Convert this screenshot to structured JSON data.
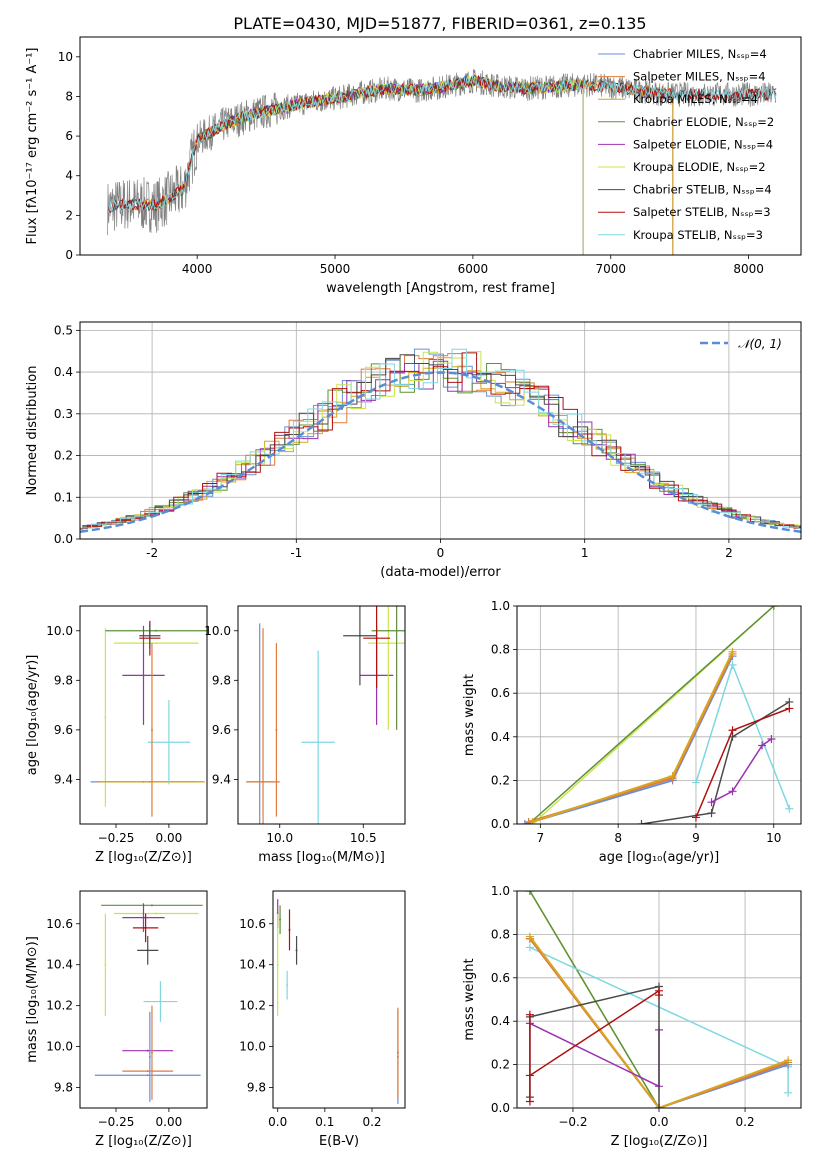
{
  "figure": {
    "title": "PLATE=0430, MJD=51877, FIBERID=0361, z=0.135"
  },
  "colors": {
    "chabrier_miles": "#6a8fd8",
    "salpeter_miles": "#e07b39",
    "kroupa_miles": "#d9a520",
    "chabrier_elodie": "#5e8f3a",
    "salpeter_elodie": "#9b30b0",
    "kroupa_elodie": "#c8e64b",
    "chabrier_stelib": "#4a4a4a",
    "salpeter_stelib": "#b01010",
    "kroupa_stelib": "#7fd8e0",
    "data": "#808080",
    "normal": "#5b8cd6",
    "grid": "#b0b0b0"
  },
  "chart_data": [
    {
      "id": "spectrum",
      "type": "line",
      "xlabel": "wavelength [Angstrom, rest frame]",
      "ylabel": "Flux [fλ10⁻¹⁷ erg cm⁻² s⁻¹ A⁻¹]",
      "xlim": [
        3150,
        8380
      ],
      "ylim": [
        0,
        11
      ],
      "xticks": [
        4000,
        5000,
        6000,
        7000,
        8000
      ],
      "yticks": [
        0,
        2,
        4,
        6,
        8,
        10
      ],
      "grid": false,
      "legend_position": "right",
      "legend": [
        {
          "label": "Chabrier MILES, Nₛₛₚ=4",
          "color_key": "chabrier_miles"
        },
        {
          "label": "Salpeter MILES, Nₛₛₚ=4",
          "color_key": "salpeter_miles"
        },
        {
          "label": "Kroupa MILES, Nₛₛₚ=4",
          "color_key": "kroupa_miles"
        },
        {
          "label": "Chabrier ELODIE, Nₛₛₚ=2",
          "color_key": "chabrier_elodie"
        },
        {
          "label": "Salpeter ELODIE, Nₛₛₚ=4",
          "color_key": "salpeter_elodie"
        },
        {
          "label": "Kroupa ELODIE, Nₛₛₚ=2",
          "color_key": "kroupa_elodie"
        },
        {
          "label": "Chabrier STELIB, Nₛₛₚ=4",
          "color_key": "chabrier_stelib"
        },
        {
          "label": "Salpeter STELIB, Nₛₛₚ=3",
          "color_key": "salpeter_stelib"
        },
        {
          "label": "Kroupa STELIB, Nₛₛₚ=3",
          "color_key": "kroupa_stelib"
        }
      ],
      "continuum": {
        "x": [
          3350,
          3500,
          3700,
          3900,
          4000,
          4200,
          4400,
          4600,
          4800,
          5000,
          5200,
          5400,
          5600,
          5800,
          6000,
          6200,
          6400,
          6600,
          6800,
          7000,
          7200,
          7400
        ],
        "y": [
          2.4,
          2.6,
          2.5,
          3.3,
          5.8,
          6.6,
          7.1,
          7.4,
          7.7,
          7.9,
          8.2,
          8.4,
          8.3,
          8.5,
          8.8,
          8.5,
          8.4,
          8.5,
          8.6,
          8.5,
          8.3,
          8.1
        ]
      }
    },
    {
      "id": "residuals",
      "type": "line",
      "xlabel": "(data-model)/error",
      "ylabel": "Normed distribution",
      "xlim": [
        -2.5,
        2.5
      ],
      "ylim": [
        0,
        0.52
      ],
      "xticks": [
        -2,
        -1,
        0,
        1,
        2
      ],
      "yticks": [
        0.0,
        0.1,
        0.2,
        0.3,
        0.4,
        0.5
      ],
      "grid": true,
      "legend_position": "top-right",
      "legend": [
        {
          "label": "𝒩(0, 1)",
          "color_key": "normal"
        }
      ],
      "bin_width": 0.1
    },
    {
      "id": "age-z",
      "type": "scatter",
      "xlabel": "Z [log₁₀(Z/Z⊙)]",
      "ylabel": "age  [log₁₀(age/yr)]",
      "xlim": [
        -0.42,
        0.18
      ],
      "ylim": [
        9.22,
        10.1
      ],
      "xticks": [
        -0.25,
        0.0
      ],
      "xticklabels": [
        "−0.25",
        "0.00"
      ],
      "yticks": [
        9.4,
        9.6,
        9.8,
        10.0
      ],
      "errorbars": [
        {
          "color_key": "kroupa_elodie",
          "x": -0.3,
          "xerr": 0,
          "y": 9.65,
          "yerr": 0.36
        },
        {
          "color_key": "chabrier_miles",
          "x": -0.12,
          "xerr": 0.25,
          "y": 9.39,
          "yerr": 0
        },
        {
          "color_key": "salpeter_miles",
          "x": -0.09,
          "xerr": 0.25,
          "y": 9.39,
          "yerr": 0
        },
        {
          "color_key": "kroupa_miles",
          "x": -0.08,
          "xerr": 0.25,
          "y": 9.39,
          "yerr": 0
        },
        {
          "color_key": "kroupa_stelib",
          "x": 0.0,
          "xerr": 0.1,
          "y": 9.55,
          "yerr": 0.17
        },
        {
          "color_key": "kroupa_elodie",
          "x": -0.06,
          "xerr": 0.2,
          "y": 9.95,
          "yerr": 0
        },
        {
          "color_key": "chabrier_elodie",
          "x": -0.06,
          "xerr": 0.24,
          "y": 10.0,
          "yerr": 0
        },
        {
          "color_key": "salpeter_elodie",
          "x": -0.12,
          "xerr": 0.1,
          "y": 9.82,
          "yerr": 0.2
        },
        {
          "color_key": "salpeter_stelib",
          "x": -0.09,
          "xerr": 0.05,
          "y": 9.97,
          "yerr": 0.07
        },
        {
          "color_key": "chabrier_stelib",
          "x": -0.09,
          "xerr": 0.05,
          "y": 9.98,
          "yerr": 0.05
        },
        {
          "color_key": "salpeter_miles",
          "x": -0.08,
          "xerr": 0,
          "y": 9.6,
          "yerr": 0.35
        }
      ]
    },
    {
      "id": "age-mass",
      "type": "scatter",
      "xlabel": "mass [log₁₀(M/M⊙)]",
      "xlim": [
        9.75,
        10.75
      ],
      "ylim": [
        9.22,
        10.1
      ],
      "xticks": [
        10.0,
        10.5
      ],
      "xticklabels": [
        "10.0",
        "10.5"
      ],
      "yticks": [
        9.4,
        9.6,
        9.8,
        10.0
      ],
      "errorbars": [
        {
          "color_key": "chabrier_miles",
          "x": 9.88,
          "xerr": 0.08,
          "y": 9.39,
          "yerr": 0.64
        },
        {
          "color_key": "salpeter_miles",
          "x": 9.9,
          "xerr": 0.1,
          "y": 9.39,
          "yerr": 0.62
        },
        {
          "color_key": "kroupa_stelib",
          "x": 10.23,
          "xerr": 0.1,
          "y": 9.55,
          "yerr": 0.37
        },
        {
          "color_key": "salpeter_elodie",
          "x": 10.58,
          "xerr": 0.1,
          "y": 9.82,
          "yerr": 0.2
        },
        {
          "color_key": "kroupa_elodie",
          "x": 10.65,
          "xerr": 0.12,
          "y": 9.95,
          "yerr": 0.35
        },
        {
          "color_key": "chabrier_elodie",
          "x": 10.7,
          "xerr": 0.15,
          "y": 10.0,
          "yerr": 0.4
        },
        {
          "color_key": "salpeter_stelib",
          "x": 10.58,
          "xerr": 0.08,
          "y": 9.97,
          "yerr": 0.2
        },
        {
          "color_key": "chabrier_stelib",
          "x": 10.48,
          "xerr": 0.1,
          "y": 9.98,
          "yerr": 0.2
        },
        {
          "color_key": "salpeter_miles",
          "x": 9.98,
          "xerr": 0,
          "y": 9.6,
          "yerr": 0.35
        }
      ]
    },
    {
      "id": "weight-age",
      "type": "line",
      "xlabel": "age  [log₁₀(age/yr)]",
      "ylabel": "mass weight",
      "xlim": [
        6.7,
        10.35
      ],
      "ylim": [
        0,
        1.0
      ],
      "xticks": [
        7,
        8,
        9,
        10
      ],
      "yticks": [
        0.0,
        0.2,
        0.4,
        0.6,
        0.8,
        1.0
      ],
      "grid": true,
      "series": [
        {
          "color_key": "kroupa_elodie",
          "x": [
            6.9,
            10.0
          ],
          "y": [
            0.0,
            1.0
          ]
        },
        {
          "color_key": "chabrier_elodie",
          "x": [
            6.85,
            10.0
          ],
          "y": [
            0.0,
            1.0
          ]
        },
        {
          "color_key": "chabrier_miles",
          "x": [
            6.8,
            8.7,
            9.47
          ],
          "y": [
            0.0,
            0.2,
            0.77
          ]
        },
        {
          "color_key": "salpeter_miles",
          "x": [
            6.85,
            8.7,
            9.47
          ],
          "y": [
            0.01,
            0.21,
            0.78
          ]
        },
        {
          "color_key": "kroupa_miles",
          "x": [
            6.9,
            8.7,
            9.47
          ],
          "y": [
            0.01,
            0.22,
            0.79
          ]
        },
        {
          "color_key": "kroupa_stelib",
          "x": [
            9.0,
            9.47,
            10.2
          ],
          "y": [
            0.19,
            0.73,
            0.07
          ]
        },
        {
          "color_key": "chabrier_stelib",
          "x": [
            8.3,
            9.2,
            9.47,
            10.2
          ],
          "y": [
            0.0,
            0.05,
            0.4,
            0.56
          ]
        },
        {
          "color_key": "salpeter_stelib",
          "x": [
            9.0,
            9.47,
            10.2
          ],
          "y": [
            0.03,
            0.43,
            0.53
          ]
        },
        {
          "color_key": "salpeter_elodie",
          "x": [
            9.2,
            9.47,
            9.85,
            9.97
          ],
          "y": [
            0.1,
            0.15,
            0.36,
            0.39
          ]
        }
      ]
    },
    {
      "id": "mass-z",
      "type": "scatter",
      "xlabel": "Z [log₁₀(Z/Z⊙)]",
      "ylabel": "mass [log₁₀(M/M⊙)]",
      "xlim": [
        -0.42,
        0.18
      ],
      "ylim": [
        9.7,
        10.76
      ],
      "xticks": [
        -0.25,
        0.0
      ],
      "xticklabels": [
        "−0.25",
        "0.00"
      ],
      "yticks": [
        9.8,
        10.0,
        10.2,
        10.4,
        10.6
      ],
      "errorbars": [
        {
          "color_key": "chabrier_elodie",
          "x": -0.08,
          "xerr": 0.24,
          "y": 10.69,
          "yerr": 0
        },
        {
          "color_key": "kroupa_elodie",
          "x": -0.06,
          "xerr": 0.2,
          "y": 10.65,
          "yerr": 0
        },
        {
          "color_key": "kroupa_elodie",
          "x": -0.3,
          "xerr": 0,
          "y": 10.4,
          "yerr": 0.25
        },
        {
          "color_key": "salpeter_elodie",
          "x": -0.12,
          "xerr": 0.1,
          "y": 10.63,
          "yerr": 0.07
        },
        {
          "color_key": "salpeter_stelib",
          "x": -0.11,
          "xerr": 0.06,
          "y": 10.58,
          "yerr": 0.07
        },
        {
          "color_key": "chabrier_stelib",
          "x": -0.1,
          "xerr": 0.05,
          "y": 10.47,
          "yerr": 0.07
        },
        {
          "color_key": "kroupa_stelib",
          "x": -0.04,
          "xerr": 0.08,
          "y": 10.22,
          "yerr": 0.1
        },
        {
          "color_key": "salpeter_elodie",
          "x": -0.1,
          "xerr": 0.12,
          "y": 9.98,
          "yerr": 0
        },
        {
          "color_key": "salpeter_miles",
          "x": -0.1,
          "xerr": 0.12,
          "y": 9.88,
          "yerr": 0
        },
        {
          "color_key": "chabrier_miles",
          "x": -0.1,
          "xerr": 0.25,
          "y": 9.86,
          "yerr": 0
        },
        {
          "color_key": "salpeter_miles",
          "x": -0.08,
          "xerr": 0,
          "y": 9.97,
          "yerr": 0.23
        },
        {
          "color_key": "chabrier_miles",
          "x": -0.09,
          "xerr": 0,
          "y": 9.95,
          "yerr": 0.22
        }
      ]
    },
    {
      "id": "mass-ebv",
      "type": "scatter",
      "xlabel": "E(B-V)",
      "xlim": [
        -0.01,
        0.27
      ],
      "ylim": [
        9.7,
        10.76
      ],
      "xticks": [
        0.0,
        0.1,
        0.2
      ],
      "xticklabels": [
        "0.0",
        "0.1",
        "0.2"
      ],
      "yticks": [
        9.8,
        10.0,
        10.2,
        10.4,
        10.6
      ],
      "errorbars": [
        {
          "color_key": "salpeter_elodie",
          "x": 0.0,
          "xerr": 0,
          "y": 10.65,
          "yerr": 0.07
        },
        {
          "color_key": "kroupa_elodie",
          "x": 0.0,
          "xerr": 0,
          "y": 10.4,
          "yerr": 0.25
        },
        {
          "color_key": "chabrier_elodie",
          "x": 0.005,
          "xerr": 0,
          "y": 10.62,
          "yerr": 0.07
        },
        {
          "color_key": "kroupa_stelib",
          "x": 0.02,
          "xerr": 0,
          "y": 10.3,
          "yerr": 0.07
        },
        {
          "color_key": "salpeter_stelib",
          "x": 0.025,
          "xerr": 0,
          "y": 10.57,
          "yerr": 0.1
        },
        {
          "color_key": "chabrier_stelib",
          "x": 0.04,
          "xerr": 0,
          "y": 10.47,
          "yerr": 0.07
        },
        {
          "color_key": "chabrier_miles",
          "x": 0.255,
          "xerr": 0,
          "y": 9.95,
          "yerr": 0.23
        },
        {
          "color_key": "salpeter_miles",
          "x": 0.255,
          "xerr": 0,
          "y": 9.97,
          "yerr": 0.22
        }
      ]
    },
    {
      "id": "weight-z",
      "type": "line",
      "xlabel": "Z [log₁₀(Z/Z⊙)]",
      "ylabel": "mass weight",
      "xlim": [
        -0.33,
        0.33
      ],
      "ylim": [
        0,
        1.0
      ],
      "xticks": [
        -0.2,
        0.0,
        0.2
      ],
      "xticklabels": [
        "−0.2",
        "0.0",
        "0.2"
      ],
      "yticks": [
        0.0,
        0.2,
        0.4,
        0.6,
        0.8,
        1.0
      ],
      "grid": true,
      "series": [
        {
          "color_key": "kroupa_elodie",
          "x": [
            -0.3,
            0.0
          ],
          "y": [
            1.0,
            0.0
          ]
        },
        {
          "color_key": "chabrier_elodie",
          "x": [
            -0.3,
            0.0
          ],
          "y": [
            1.0,
            0.0
          ]
        },
        {
          "color_key": "kroupa_stelib",
          "x": [
            -0.3,
            0.3,
            0.3
          ],
          "y": [
            0.74,
            0.19,
            0.07
          ]
        },
        {
          "color_key": "chabrier_miles",
          "x": [
            -0.3,
            0.0,
            0.3
          ],
          "y": [
            0.78,
            0.0,
            0.2
          ]
        },
        {
          "color_key": "salpeter_miles",
          "x": [
            -0.3,
            0.0,
            0.3
          ],
          "y": [
            0.78,
            0.0,
            0.21
          ]
        },
        {
          "color_key": "kroupa_miles",
          "x": [
            -0.3,
            0.0,
            0.3
          ],
          "y": [
            0.79,
            0.0,
            0.22
          ]
        },
        {
          "color_key": "salpeter_elodie",
          "x": [
            -0.3,
            0.0,
            0.0
          ],
          "y": [
            0.39,
            0.1,
            0.36
          ]
        },
        {
          "color_key": "chabrier_stelib",
          "x": [
            -0.3,
            -0.3,
            0.0,
            0.0
          ],
          "y": [
            0.05,
            0.42,
            0.56,
            0.0
          ]
        },
        {
          "color_key": "salpeter_stelib",
          "x": [
            -0.3,
            -0.3,
            -0.3,
            0.0,
            0.0
          ],
          "y": [
            0.03,
            0.43,
            0.15,
            0.54,
            0.52
          ]
        }
      ]
    }
  ]
}
